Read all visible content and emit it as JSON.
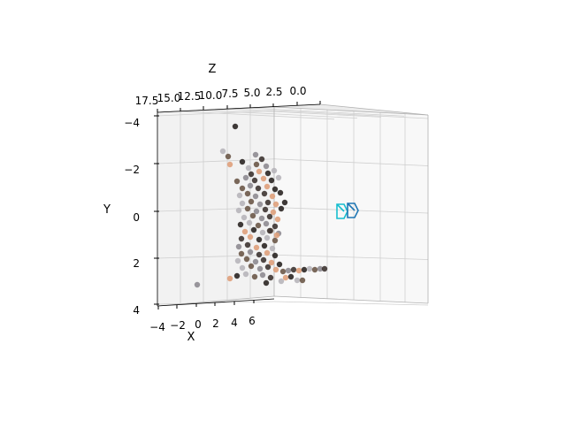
{
  "chart_data": {
    "type": "scatter",
    "projection": "3d",
    "title": "",
    "xlabel": "X",
    "ylabel": "Y",
    "zlabel": "Z",
    "x_ticks": [
      "−4",
      "−2",
      "0",
      "2",
      "4",
      "6"
    ],
    "y_ticks": [
      "−4",
      "−2",
      "0",
      "2",
      "4"
    ],
    "z_ticks": [
      "17.5",
      "15.0",
      "12.5",
      "10.0",
      "7.5",
      "5.0",
      "2.5",
      "0.0"
    ],
    "y_range": [
      -4,
      4
    ],
    "grid": true,
    "point_colors": [
      "#2a2522",
      "#3d3431",
      "#6b5848",
      "#8a7055",
      "#a68560",
      "#c3a47c",
      "#d8bc90",
      "#8e8b91",
      "#b7b5ba",
      "#dfa07b",
      "#c8684e",
      "#e9b257",
      "#f3d8a2",
      "#4a3f3a"
    ],
    "points": [
      {
        "u": 266,
        "v": 143
      },
      {
        "u": 252,
        "v": 171
      },
      {
        "u": 258,
        "v": 177
      },
      {
        "u": 289,
        "v": 175
      },
      {
        "u": 296,
        "v": 180
      },
      {
        "u": 260,
        "v": 186
      },
      {
        "u": 274,
        "v": 183
      },
      {
        "u": 281,
        "v": 190
      },
      {
        "u": 290,
        "v": 186
      },
      {
        "u": 301,
        "v": 188
      },
      {
        "u": 284,
        "v": 197
      },
      {
        "u": 293,
        "v": 194
      },
      {
        "u": 303,
        "v": 196
      },
      {
        "u": 310,
        "v": 193
      },
      {
        "u": 268,
        "v": 205
      },
      {
        "u": 278,
        "v": 201
      },
      {
        "u": 288,
        "v": 204
      },
      {
        "u": 298,
        "v": 202
      },
      {
        "u": 307,
        "v": 204
      },
      {
        "u": 315,
        "v": 201
      },
      {
        "u": 274,
        "v": 213
      },
      {
        "u": 283,
        "v": 210
      },
      {
        "u": 292,
        "v": 213
      },
      {
        "u": 302,
        "v": 211
      },
      {
        "u": 311,
        "v": 214
      },
      {
        "u": 271,
        "v": 221
      },
      {
        "u": 280,
        "v": 219
      },
      {
        "u": 289,
        "v": 222
      },
      {
        "u": 299,
        "v": 219
      },
      {
        "u": 308,
        "v": 222
      },
      {
        "u": 317,
        "v": 218
      },
      {
        "u": 274,
        "v": 230
      },
      {
        "u": 284,
        "v": 228
      },
      {
        "u": 294,
        "v": 231
      },
      {
        "u": 303,
        "v": 229
      },
      {
        "u": 312,
        "v": 231
      },
      {
        "u": 322,
        "v": 229
      },
      {
        "u": 270,
        "v": 238
      },
      {
        "u": 280,
        "v": 236
      },
      {
        "u": 290,
        "v": 239
      },
      {
        "u": 300,
        "v": 237
      },
      {
        "u": 309,
        "v": 240
      },
      {
        "u": 318,
        "v": 236
      },
      {
        "u": 276,
        "v": 246
      },
      {
        "u": 286,
        "v": 244
      },
      {
        "u": 296,
        "v": 247
      },
      {
        "u": 305,
        "v": 245
      },
      {
        "u": 314,
        "v": 248
      },
      {
        "u": 272,
        "v": 254
      },
      {
        "u": 282,
        "v": 252
      },
      {
        "u": 292,
        "v": 255
      },
      {
        "u": 301,
        "v": 253
      },
      {
        "u": 311,
        "v": 256
      },
      {
        "u": 277,
        "v": 262
      },
      {
        "u": 287,
        "v": 260
      },
      {
        "u": 297,
        "v": 263
      },
      {
        "u": 306,
        "v": 261
      },
      {
        "u": 315,
        "v": 264
      },
      {
        "u": 273,
        "v": 270
      },
      {
        "u": 283,
        "v": 268
      },
      {
        "u": 293,
        "v": 271
      },
      {
        "u": 302,
        "v": 269
      },
      {
        "u": 311,
        "v": 272
      },
      {
        "u": 270,
        "v": 279
      },
      {
        "u": 280,
        "v": 277
      },
      {
        "u": 290,
        "v": 280
      },
      {
        "u": 299,
        "v": 278
      },
      {
        "u": 308,
        "v": 281
      },
      {
        "u": 273,
        "v": 287
      },
      {
        "u": 283,
        "v": 285
      },
      {
        "u": 293,
        "v": 288
      },
      {
        "u": 302,
        "v": 286
      },
      {
        "u": 311,
        "v": 289
      },
      {
        "u": 269,
        "v": 295
      },
      {
        "u": 279,
        "v": 293
      },
      {
        "u": 289,
        "v": 296
      },
      {
        "u": 298,
        "v": 294
      },
      {
        "u": 307,
        "v": 297
      },
      {
        "u": 316,
        "v": 299
      },
      {
        "u": 274,
        "v": 303
      },
      {
        "u": 284,
        "v": 301
      },
      {
        "u": 294,
        "v": 304
      },
      {
        "u": 303,
        "v": 302
      },
      {
        "u": 312,
        "v": 305
      },
      {
        "u": 268,
        "v": 312
      },
      {
        "u": 278,
        "v": 310
      },
      {
        "u": 288,
        "v": 313
      },
      {
        "u": 297,
        "v": 311
      },
      {
        "u": 306,
        "v": 314
      },
      {
        "u": 260,
        "v": 315
      },
      {
        "u": 301,
        "v": 320
      },
      {
        "u": 318,
        "v": 318
      },
      {
        "u": 320,
        "v": 307
      },
      {
        "u": 326,
        "v": 306
      },
      {
        "u": 332,
        "v": 305
      },
      {
        "u": 338,
        "v": 306
      },
      {
        "u": 344,
        "v": 305
      },
      {
        "u": 350,
        "v": 304
      },
      {
        "u": 356,
        "v": 305
      },
      {
        "u": 362,
        "v": 304
      },
      {
        "u": 367,
        "v": 304
      },
      {
        "u": 323,
        "v": 314
      },
      {
        "u": 329,
        "v": 313
      },
      {
        "u": 336,
        "v": 317
      },
      {
        "u": 342,
        "v": 317
      },
      {
        "u": 223,
        "v": 322
      },
      {
        "u": 305,
        "v": 261
      },
      {
        "u": 313,
        "v": 266
      }
    ],
    "markers": [
      {
        "u": 385,
        "v": 239,
        "color": "#17becf"
      },
      {
        "u": 397,
        "v": 238,
        "color": "#1f77b4"
      }
    ]
  }
}
